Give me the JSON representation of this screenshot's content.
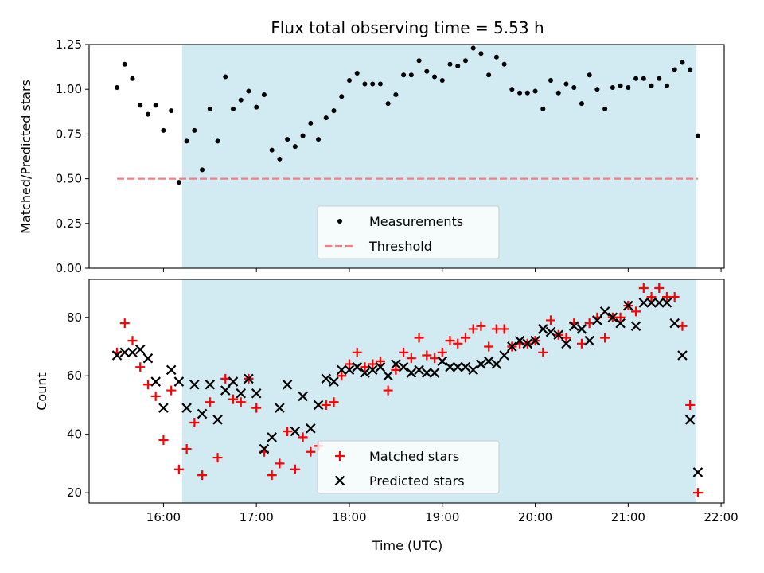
{
  "chart_data": [
    {
      "type": "scatter",
      "title": "Flux total observing time = 5.53 h",
      "xlabel": "",
      "ylabel": "Matched/Predicted stars",
      "xlim": [
        "15:12",
        "22:02"
      ],
      "ylim": [
        0,
        1.25
      ],
      "yticks": [
        "0.00",
        "0.25",
        "0.50",
        "0.75",
        "1.00",
        "1.25"
      ],
      "shaded_span": [
        "16:12",
        "21:44"
      ],
      "shade_color": "#add8e6",
      "legend": {
        "placement": "bottom-center"
      },
      "series": [
        {
          "name": "Measurements",
          "marker": "dot",
          "color": "#000000",
          "points": [
            [
              "15:30",
              1.01
            ],
            [
              "15:35",
              1.14
            ],
            [
              "15:40",
              1.06
            ],
            [
              "15:45",
              0.91
            ],
            [
              "15:50",
              0.86
            ],
            [
              "15:55",
              0.91
            ],
            [
              "16:00",
              0.77
            ],
            [
              "16:05",
              0.88
            ],
            [
              "16:10",
              0.48
            ],
            [
              "16:15",
              0.71
            ],
            [
              "16:20",
              0.77
            ],
            [
              "16:25",
              0.55
            ],
            [
              "16:30",
              0.89
            ],
            [
              "16:35",
              0.71
            ],
            [
              "16:40",
              1.07
            ],
            [
              "16:45",
              0.89
            ],
            [
              "16:50",
              0.94
            ],
            [
              "16:55",
              0.99
            ],
            [
              "17:00",
              0.9
            ],
            [
              "17:05",
              0.97
            ],
            [
              "17:10",
              0.66
            ],
            [
              "17:15",
              0.61
            ],
            [
              "17:20",
              0.72
            ],
            [
              "17:25",
              0.68
            ],
            [
              "17:30",
              0.74
            ],
            [
              "17:35",
              0.81
            ],
            [
              "17:40",
              0.72
            ],
            [
              "17:45",
              0.84
            ],
            [
              "17:50",
              0.88
            ],
            [
              "17:55",
              0.96
            ],
            [
              "18:00",
              1.05
            ],
            [
              "18:05",
              1.09
            ],
            [
              "18:10",
              1.03
            ],
            [
              "18:15",
              1.03
            ],
            [
              "18:20",
              1.03
            ],
            [
              "18:25",
              0.92
            ],
            [
              "18:30",
              0.97
            ],
            [
              "18:35",
              1.08
            ],
            [
              "18:40",
              1.08
            ],
            [
              "18:45",
              1.16
            ],
            [
              "18:50",
              1.1
            ],
            [
              "18:55",
              1.07
            ],
            [
              "19:00",
              1.05
            ],
            [
              "19:05",
              1.14
            ],
            [
              "19:10",
              1.13
            ],
            [
              "19:15",
              1.16
            ],
            [
              "19:20",
              1.23
            ],
            [
              "19:25",
              1.2
            ],
            [
              "19:30",
              1.08
            ],
            [
              "19:35",
              1.18
            ],
            [
              "19:40",
              1.14
            ],
            [
              "19:45",
              1.0
            ],
            [
              "19:50",
              0.98
            ],
            [
              "19:55",
              0.98
            ],
            [
              "20:00",
              0.99
            ],
            [
              "20:05",
              0.89
            ],
            [
              "20:10",
              1.05
            ],
            [
              "20:15",
              0.98
            ],
            [
              "20:20",
              1.03
            ],
            [
              "20:25",
              1.01
            ],
            [
              "20:30",
              0.92
            ],
            [
              "20:35",
              1.08
            ],
            [
              "20:40",
              1.0
            ],
            [
              "20:45",
              0.89
            ],
            [
              "20:50",
              1.01
            ],
            [
              "20:55",
              1.02
            ],
            [
              "21:00",
              1.01
            ],
            [
              "21:05",
              1.06
            ],
            [
              "21:10",
              1.06
            ],
            [
              "21:15",
              1.02
            ],
            [
              "21:20",
              1.06
            ],
            [
              "21:25",
              1.02
            ],
            [
              "21:30",
              1.11
            ],
            [
              "21:35",
              1.15
            ],
            [
              "21:40",
              1.11
            ],
            [
              "21:45",
              0.74
            ]
          ]
        },
        {
          "name": "Threshold",
          "marker": "dashed-line",
          "color": "#f08080",
          "points": [
            [
              "15:30",
              0.5
            ],
            [
              "21:45",
              0.5
            ]
          ]
        }
      ]
    },
    {
      "type": "scatter",
      "title": "",
      "xlabel": "Time (UTC)",
      "ylabel": "Count",
      "xlim": [
        "15:12",
        "22:02"
      ],
      "ylim": [
        16.5,
        93
      ],
      "yticks": [
        "20",
        "40",
        "60",
        "80"
      ],
      "xticks": [
        "16:00",
        "17:00",
        "18:00",
        "19:00",
        "20:00",
        "21:00",
        "22:00"
      ],
      "shaded_span": [
        "16:12",
        "21:44"
      ],
      "shade_color": "#add8e6",
      "legend": {
        "placement": "bottom-center"
      },
      "series": [
        {
          "name": "Matched stars",
          "marker": "plus",
          "color": "#ff0000",
          "points": [
            [
              "15:30",
              68
            ],
            [
              "15:35",
              78
            ],
            [
              "15:40",
              72
            ],
            [
              "15:45",
              63
            ],
            [
              "15:50",
              57
            ],
            [
              "15:55",
              53
            ],
            [
              "16:00",
              38
            ],
            [
              "16:05",
              55
            ],
            [
              "16:10",
              28
            ],
            [
              "16:15",
              35
            ],
            [
              "16:20",
              44
            ],
            [
              "16:25",
              26
            ],
            [
              "16:30",
              51
            ],
            [
              "16:35",
              32
            ],
            [
              "16:40",
              59
            ],
            [
              "16:45",
              52
            ],
            [
              "16:50",
              51
            ],
            [
              "16:55",
              59
            ],
            [
              "17:00",
              49
            ],
            [
              "17:05",
              34
            ],
            [
              "17:10",
              26
            ],
            [
              "17:15",
              30
            ],
            [
              "17:20",
              41
            ],
            [
              "17:25",
              28
            ],
            [
              "17:30",
              39
            ],
            [
              "17:35",
              34
            ],
            [
              "17:40",
              36
            ],
            [
              "17:45",
              50
            ],
            [
              "17:50",
              51
            ],
            [
              "17:55",
              60
            ],
            [
              "18:00",
              64
            ],
            [
              "18:05",
              68
            ],
            [
              "18:10",
              63
            ],
            [
              "18:15",
              64
            ],
            [
              "18:20",
              65
            ],
            [
              "18:25",
              55
            ],
            [
              "18:30",
              62
            ],
            [
              "18:35",
              68
            ],
            [
              "18:40",
              66
            ],
            [
              "18:45",
              73
            ],
            [
              "18:50",
              67
            ],
            [
              "18:55",
              66
            ],
            [
              "19:00",
              68
            ],
            [
              "19:05",
              72
            ],
            [
              "19:10",
              71
            ],
            [
              "19:15",
              73
            ],
            [
              "19:20",
              76
            ],
            [
              "19:25",
              77
            ],
            [
              "19:30",
              70
            ],
            [
              "19:35",
              76
            ],
            [
              "19:40",
              76
            ],
            [
              "19:45",
              70
            ],
            [
              "19:50",
              71
            ],
            [
              "19:55",
              71
            ],
            [
              "20:00",
              72
            ],
            [
              "20:05",
              68
            ],
            [
              "20:10",
              79
            ],
            [
              "20:15",
              74
            ],
            [
              "20:20",
              73
            ],
            [
              "20:25",
              78
            ],
            [
              "20:30",
              71
            ],
            [
              "20:35",
              78
            ],
            [
              "20:40",
              80
            ],
            [
              "20:45",
              73
            ],
            [
              "20:50",
              80
            ],
            [
              "20:55",
              80
            ],
            [
              "21:00",
              84
            ],
            [
              "21:05",
              82
            ],
            [
              "21:10",
              90
            ],
            [
              "21:15",
              87
            ],
            [
              "21:20",
              90
            ],
            [
              "21:25",
              87
            ],
            [
              "21:30",
              87
            ],
            [
              "21:35",
              77
            ],
            [
              "21:40",
              50
            ],
            [
              "21:45",
              20
            ]
          ]
        },
        {
          "name": "Predicted stars",
          "marker": "x",
          "color": "#000000",
          "points": [
            [
              "15:30",
              67
            ],
            [
              "15:35",
              68
            ],
            [
              "15:40",
              68
            ],
            [
              "15:45",
              69
            ],
            [
              "15:50",
              66
            ],
            [
              "15:55",
              58
            ],
            [
              "16:00",
              49
            ],
            [
              "16:05",
              62
            ],
            [
              "16:10",
              58
            ],
            [
              "16:15",
              49
            ],
            [
              "16:20",
              57
            ],
            [
              "16:25",
              47
            ],
            [
              "16:30",
              57
            ],
            [
              "16:35",
              45
            ],
            [
              "16:40",
              55
            ],
            [
              "16:45",
              58
            ],
            [
              "16:50",
              54
            ],
            [
              "16:55",
              59
            ],
            [
              "17:00",
              54
            ],
            [
              "17:05",
              35
            ],
            [
              "17:10",
              39
            ],
            [
              "17:15",
              49
            ],
            [
              "17:20",
              57
            ],
            [
              "17:25",
              41
            ],
            [
              "17:30",
              53
            ],
            [
              "17:35",
              42
            ],
            [
              "17:40",
              50
            ],
            [
              "17:45",
              59
            ],
            [
              "17:50",
              58
            ],
            [
              "17:55",
              62
            ],
            [
              "18:00",
              62
            ],
            [
              "18:05",
              63
            ],
            [
              "18:10",
              61
            ],
            [
              "18:15",
              62
            ],
            [
              "18:20",
              63
            ],
            [
              "18:25",
              60
            ],
            [
              "18:30",
              64
            ],
            [
              "18:35",
              63
            ],
            [
              "18:40",
              61
            ],
            [
              "18:45",
              62
            ],
            [
              "18:50",
              61
            ],
            [
              "18:55",
              61
            ],
            [
              "19:00",
              65
            ],
            [
              "19:05",
              63
            ],
            [
              "19:10",
              63
            ],
            [
              "19:15",
              63
            ],
            [
              "19:20",
              62
            ],
            [
              "19:25",
              64
            ],
            [
              "19:30",
              65
            ],
            [
              "19:35",
              64
            ],
            [
              "19:40",
              67
            ],
            [
              "19:45",
              70
            ],
            [
              "19:50",
              72
            ],
            [
              "19:55",
              71
            ],
            [
              "20:00",
              72
            ],
            [
              "20:05",
              76
            ],
            [
              "20:10",
              75
            ],
            [
              "20:15",
              74
            ],
            [
              "20:20",
              71
            ],
            [
              "20:25",
              77
            ],
            [
              "20:30",
              76
            ],
            [
              "20:35",
              72
            ],
            [
              "20:40",
              79
            ],
            [
              "20:45",
              82
            ],
            [
              "20:50",
              80
            ],
            [
              "20:55",
              78
            ],
            [
              "21:00",
              84
            ],
            [
              "21:05",
              77
            ],
            [
              "21:10",
              85
            ],
            [
              "21:15",
              85
            ],
            [
              "21:20",
              85
            ],
            [
              "21:25",
              85
            ],
            [
              "21:30",
              78
            ],
            [
              "21:35",
              67
            ],
            [
              "21:40",
              45
            ],
            [
              "21:45",
              27
            ]
          ]
        }
      ]
    }
  ]
}
